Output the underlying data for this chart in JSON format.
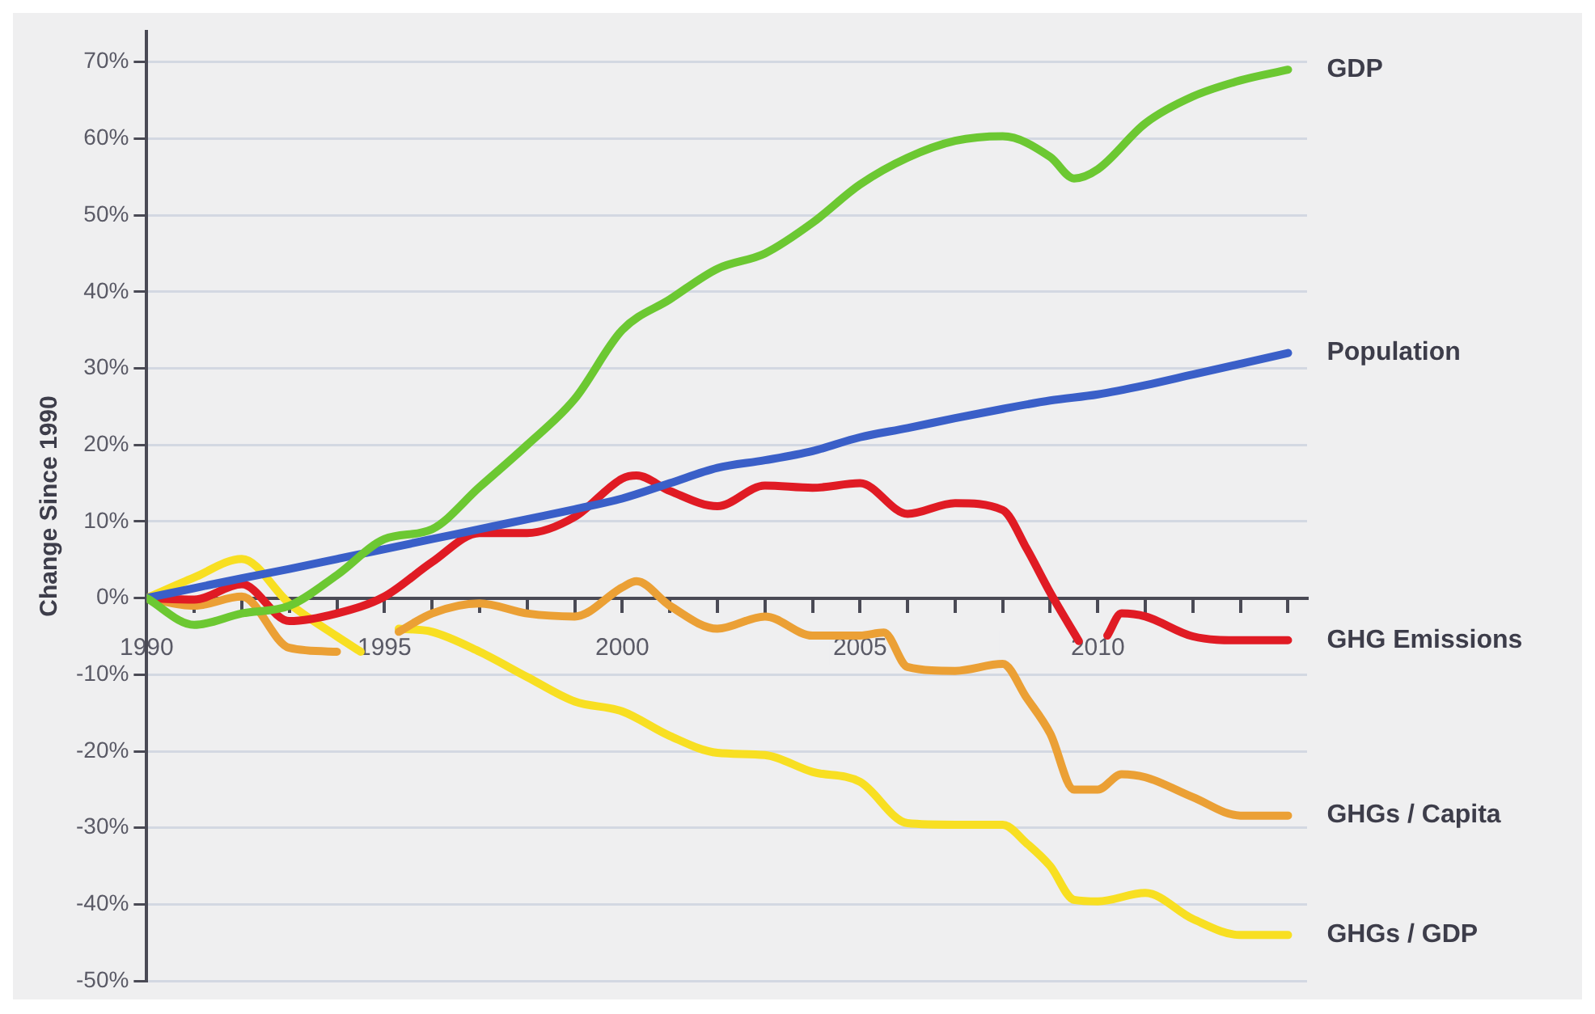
{
  "chart_data": {
    "type": "line",
    "ylabel": "Change Since 1990",
    "xlim": [
      1990,
      2014.4
    ],
    "ylim": [
      -50,
      74
    ],
    "xticks": [
      1990,
      {
        "value": 1991,
        "label": null
      },
      {
        "value": 1992,
        "label": null
      },
      {
        "value": 1993,
        "label": null
      },
      {
        "value": 1994,
        "label": null
      },
      1995,
      {
        "value": 1996,
        "label": null
      },
      {
        "value": 1997,
        "label": null
      },
      {
        "value": 1998,
        "label": null
      },
      {
        "value": 1999,
        "label": null
      },
      2000,
      {
        "value": 2001,
        "label": null
      },
      {
        "value": 2002,
        "label": null
      },
      {
        "value": 2003,
        "label": null
      },
      {
        "value": 2004,
        "label": null
      },
      2005,
      {
        "value": 2006,
        "label": null
      },
      {
        "value": 2007,
        "label": null
      },
      {
        "value": 2008,
        "label": null
      },
      {
        "value": 2009,
        "label": null
      },
      2010,
      {
        "value": 2011,
        "label": null
      },
      {
        "value": 2012,
        "label": null
      },
      {
        "value": 2013,
        "label": null
      },
      {
        "value": 2014,
        "label": null
      }
    ],
    "yticks": [
      {
        "value": -50,
        "label": "-50%"
      },
      {
        "value": -40,
        "label": "-40%"
      },
      {
        "value": -30,
        "label": "-30%"
      },
      {
        "value": -20,
        "label": "-20%"
      },
      {
        "value": -10,
        "label": "-10%"
      },
      {
        "value": 0,
        "label": "0%"
      },
      {
        "value": 10,
        "label": "10%"
      },
      {
        "value": 20,
        "label": "20%"
      },
      {
        "value": 30,
        "label": "30%"
      },
      {
        "value": 40,
        "label": "40%"
      },
      {
        "value": 50,
        "label": "50%"
      },
      {
        "value": 60,
        "label": "60%"
      },
      {
        "value": 70,
        "label": "70%"
      }
    ],
    "grid": "y",
    "legend": "right",
    "marker": "none",
    "line_style": "solid",
    "series": [
      {
        "name": "GDP",
        "color": "#6cc832",
        "x": [
          1990,
          1991,
          1992,
          1993,
          1994,
          1995,
          1996,
          1997,
          1998,
          1999,
          2000,
          2001,
          2002,
          2003,
          2004,
          2005,
          2006,
          2007,
          2008,
          2009,
          2009.5,
          2010,
          2011,
          2012,
          2013,
          2014
        ],
        "values": [
          0,
          -3.5,
          -2,
          -1,
          3,
          7.7,
          9,
          14.5,
          20,
          26,
          35,
          39,
          43,
          45,
          49,
          54,
          57.5,
          59.7,
          60.3,
          57.6,
          54.8,
          56,
          62,
          65.5,
          67.6,
          69
        ]
      },
      {
        "name": "Population",
        "color": "#3a5fc8",
        "x": [
          1990,
          1991,
          1992,
          1993,
          1994,
          1995,
          1996,
          1997,
          1998,
          1999,
          2000,
          2001,
          2002,
          2003,
          2004,
          2005,
          2006,
          2007,
          2008,
          2009,
          2010,
          2011,
          2012,
          2013,
          2014
        ],
        "values": [
          0,
          1.3,
          2.6,
          3.8,
          5.1,
          6.4,
          7.7,
          9,
          10.3,
          11.6,
          13,
          15,
          17,
          18,
          19.2,
          21,
          22.2,
          23.5,
          24.7,
          25.8,
          26.6,
          27.8,
          29.2,
          30.6,
          32
        ]
      },
      {
        "name": "GHG Emissions",
        "color": "#e01b24",
        "x": [
          1990,
          1991,
          1992,
          1993,
          1994,
          1995,
          1996,
          1997,
          1998,
          1999,
          2000,
          2000.3,
          2001,
          2002,
          2003,
          2004,
          2005,
          2006,
          2007,
          2008,
          2008.5,
          2009,
          2009.6,
          2009.9,
          2010.2,
          2010.5,
          2011,
          2012,
          2013,
          2014
        ],
        "values": [
          0,
          -0.2,
          1.8,
          -3,
          -2,
          0.2,
          4.7,
          8.5,
          8.5,
          10.6,
          15.6,
          16,
          14,
          12,
          14.7,
          14.4,
          15,
          11,
          12.4,
          11.5,
          6.5,
          0.7,
          -5.6,
          null,
          -4.9,
          -2,
          -2.4,
          -5,
          -5.5,
          -5.5
        ]
      },
      {
        "name": "GHGs / Capita",
        "color": "#eba035",
        "x": [
          1990,
          1991,
          1992,
          1993,
          1994,
          1994.7,
          1995.3,
          1996,
          1997,
          1998,
          1999,
          2000,
          2000.3,
          2001,
          2002,
          2003,
          2004,
          2005,
          2005.5,
          2006,
          2007,
          2008,
          2008.5,
          2009,
          2009.5,
          2010,
          2010.5,
          2011,
          2012,
          2013,
          2014
        ],
        "values": [
          0,
          -1,
          0.2,
          -6.5,
          -7,
          null,
          -4.4,
          -2,
          -0.7,
          -2,
          -2.4,
          1.4,
          2.2,
          -1,
          -4,
          -2.4,
          -4.9,
          -4.9,
          -4.5,
          -9,
          -9.5,
          -8.6,
          -13,
          -17.7,
          -25,
          -25,
          -23,
          -23.4,
          -26,
          -28.4,
          -28.4
        ]
      },
      {
        "name": "GHGs / GDP",
        "color": "#f8df22",
        "x": [
          1990,
          1991,
          1992,
          1993,
          1994,
          1994.5,
          1994.9,
          1995.3,
          1996,
          1997,
          1998,
          1999,
          2000,
          2001,
          2002,
          2003,
          2004,
          2005,
          2006,
          2007,
          2008,
          2008.5,
          2009,
          2009.5,
          2010,
          2011,
          2012,
          2013,
          2014
        ],
        "values": [
          0,
          2.7,
          5.1,
          -0.7,
          -5,
          -7,
          null,
          -4,
          -4.4,
          -7,
          -10.3,
          -13.5,
          -14.8,
          -18,
          -20.2,
          -20.5,
          -22.7,
          -24,
          -29.4,
          -29.6,
          -29.6,
          -32,
          -35,
          -39.4,
          -39.6,
          -38.5,
          -41.9,
          -44,
          -44
        ]
      }
    ]
  }
}
